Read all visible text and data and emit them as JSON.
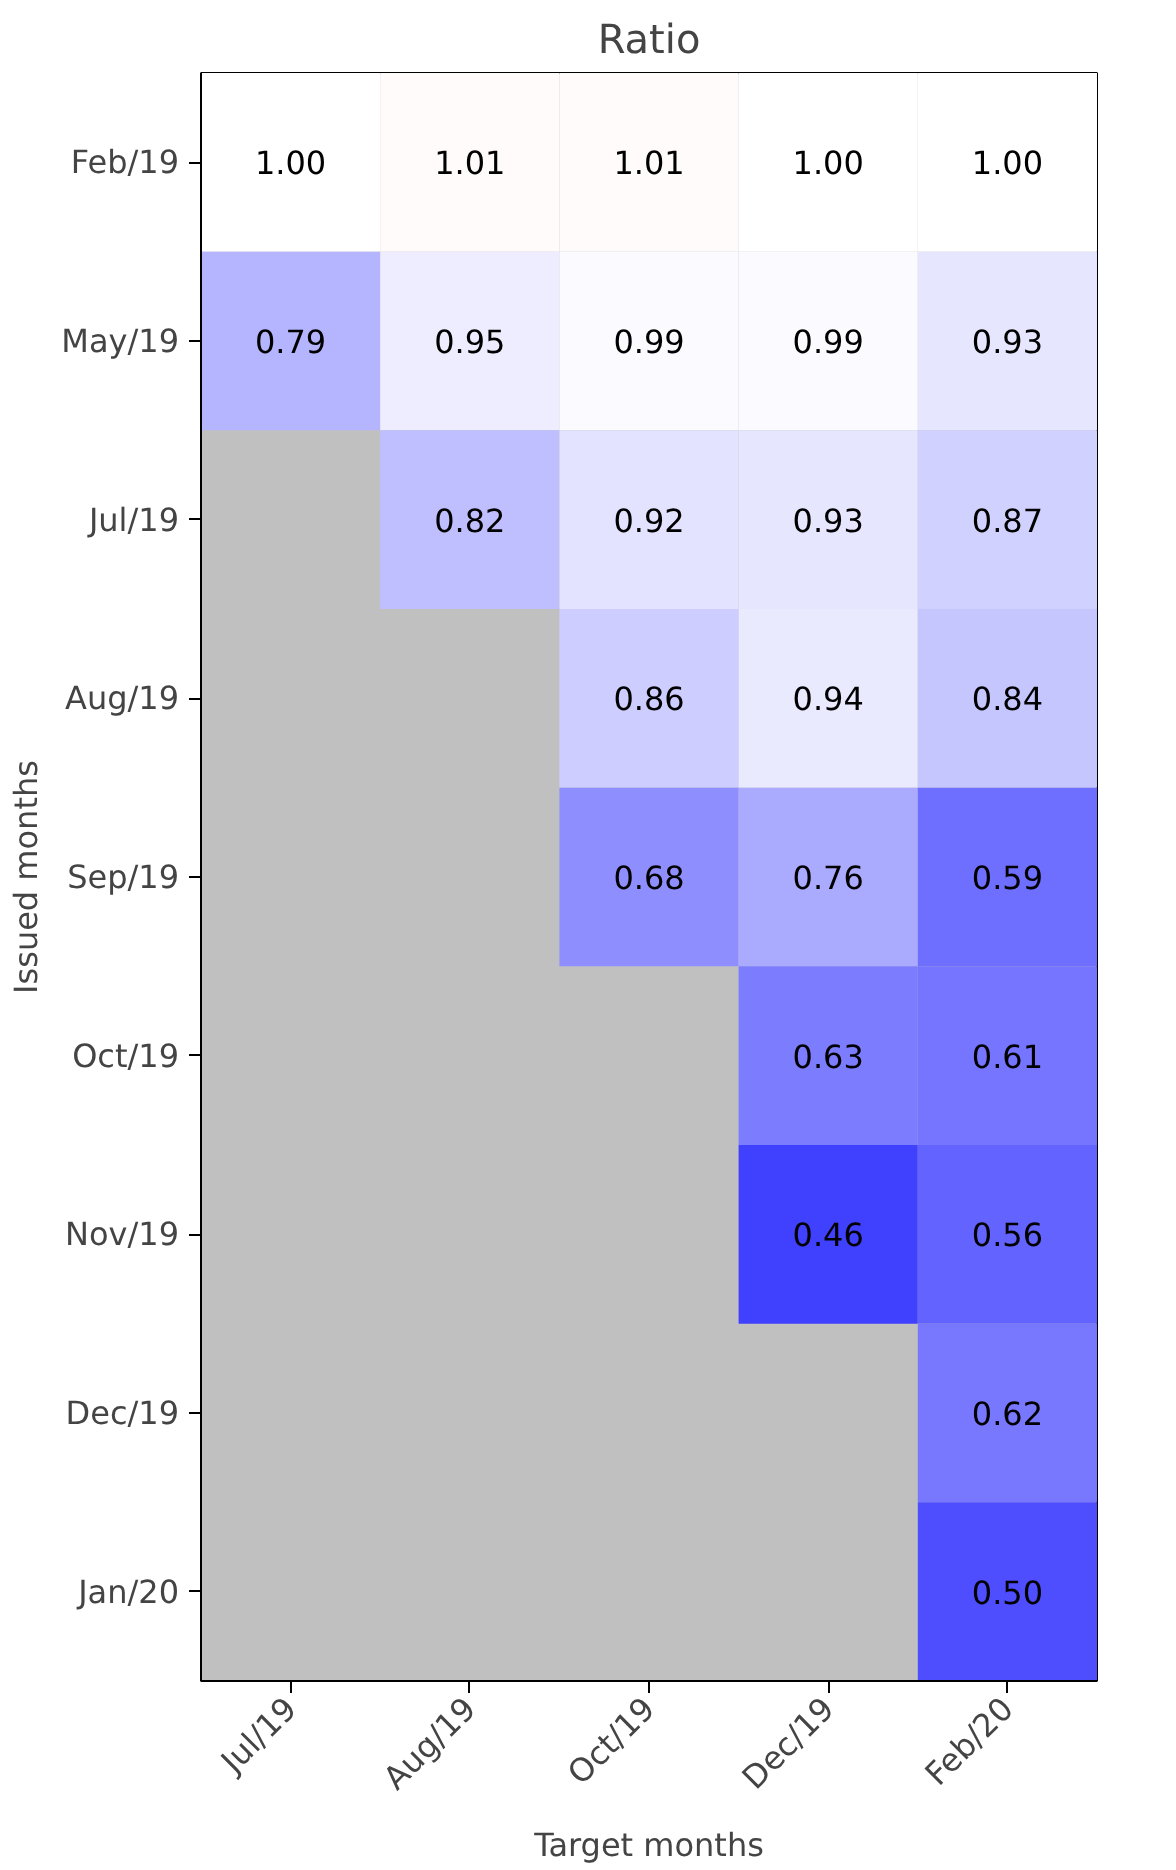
{
  "chart_data": {
    "type": "heatmap",
    "title": "Ratio",
    "xlabel": "Target months",
    "ylabel": "Issued months",
    "categories": [
      "Jul/19",
      "Aug/19",
      "Oct/19",
      "Dec/19",
      "Feb/20"
    ],
    "y_categories": [
      "Feb/19",
      "May/19",
      "Jul/19",
      "Aug/19",
      "Sep/19",
      "Oct/19",
      "Nov/19",
      "Dec/19",
      "Jan/20"
    ],
    "cells": [
      [
        1.0,
        1.01,
        1.01,
        1.0,
        1.0
      ],
      [
        0.79,
        0.95,
        0.99,
        0.99,
        0.93
      ],
      [
        null,
        0.82,
        0.92,
        0.93,
        0.87
      ],
      [
        null,
        null,
        0.86,
        0.94,
        0.84
      ],
      [
        null,
        null,
        0.68,
        0.76,
        0.59
      ],
      [
        null,
        null,
        null,
        0.63,
        0.61
      ],
      [
        null,
        null,
        null,
        0.46,
        0.56
      ],
      [
        null,
        null,
        null,
        null,
        0.62
      ],
      [
        null,
        null,
        null,
        null,
        0.5
      ]
    ],
    "cell_labels": [
      [
        "1.00",
        "1.01",
        "1.01",
        "1.00",
        "1.00"
      ],
      [
        "0.79",
        "0.95",
        "0.99",
        "0.99",
        "0.93"
      ],
      [
        null,
        "0.82",
        "0.92",
        "0.93",
        "0.87"
      ],
      [
        null,
        null,
        "0.86",
        "0.94",
        "0.84"
      ],
      [
        null,
        null,
        "0.68",
        "0.76",
        "0.59"
      ],
      [
        null,
        null,
        null,
        "0.63",
        "0.61"
      ],
      [
        null,
        null,
        null,
        "0.46",
        "0.56"
      ],
      [
        null,
        null,
        null,
        null,
        "0.62"
      ],
      [
        null,
        null,
        null,
        null,
        "0.50"
      ]
    ]
  }
}
